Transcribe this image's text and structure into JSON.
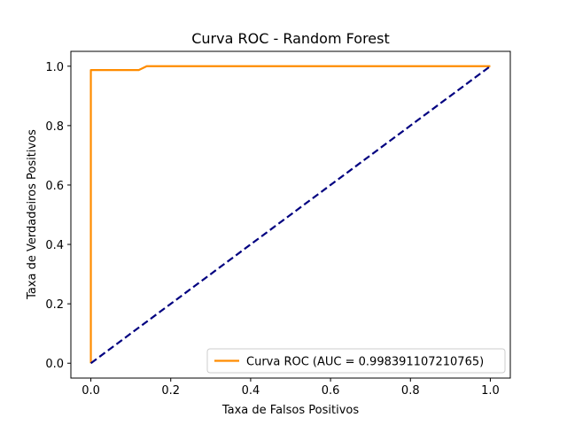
{
  "chart_data": {
    "type": "line",
    "title": "Curva ROC - Random Forest",
    "xlabel": "Taxa de Falsos Positivos",
    "ylabel": "Taxa de Verdadeiros Positivos",
    "xlim": [
      -0.05,
      1.05
    ],
    "ylim": [
      -0.05,
      1.05
    ],
    "xticks": [
      "0.0",
      "0.2",
      "0.4",
      "0.6",
      "0.8",
      "1.0"
    ],
    "yticks": [
      "0.0",
      "0.2",
      "0.4",
      "0.6",
      "0.8",
      "1.0"
    ],
    "grid": false,
    "legend_position": "lower-right",
    "series": [
      {
        "name": "Curva ROC (AUC = 0.998391107210765)",
        "color": "#ff8c00",
        "style": "solid",
        "x": [
          0.0,
          0.0,
          0.0,
          0.12,
          0.14,
          1.0
        ],
        "y": [
          0.0,
          0.987,
          0.987,
          0.987,
          1.0,
          1.0
        ]
      },
      {
        "color": "#000080",
        "style": "dashed",
        "x": [
          0.0,
          1.0
        ],
        "y": [
          0.0,
          1.0
        ]
      }
    ]
  }
}
